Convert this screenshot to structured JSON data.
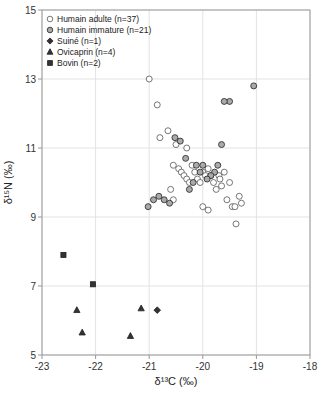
{
  "chart_data": {
    "type": "scatter",
    "xlabel": "δ¹³C (‰)",
    "ylabel": "δ¹⁵N (‰)",
    "xlim": [
      -23,
      -18
    ],
    "ylim": [
      5,
      15
    ],
    "xticks": [
      -23,
      -22,
      -21,
      -20,
      -19,
      -18
    ],
    "yticks": [
      5,
      7,
      9,
      11,
      13,
      15
    ],
    "grid": true,
    "legend": "upper left",
    "series": [
      {
        "name": "Humain adulte (n=37)",
        "color": "white",
        "marker": "circle",
        "x": [
          -21.0,
          -20.85,
          -20.65,
          -20.55,
          -20.45,
          -20.4,
          -20.35,
          -20.3,
          -20.25,
          -20.2,
          -20.15,
          -20.1,
          -20.05,
          -20.0,
          -19.95,
          -19.9,
          -19.85,
          -19.8,
          -19.75,
          -19.7,
          -19.68,
          -19.65,
          -19.6,
          -19.55,
          -19.5,
          -19.45,
          -19.4,
          -19.38,
          -19.32,
          -19.28,
          -20.8,
          -20.5,
          -20.3,
          -20.0,
          -19.9,
          -20.55,
          -20.6
        ],
        "values": [
          13.0,
          12.25,
          11.5,
          10.5,
          10.4,
          10.3,
          10.2,
          10.1,
          10.0,
          10.5,
          10.3,
          10.1,
          10.0,
          10.3,
          10.2,
          10.4,
          10.2,
          10.0,
          9.8,
          10.2,
          10.1,
          9.9,
          10.3,
          9.5,
          10.0,
          9.3,
          9.3,
          8.8,
          9.6,
          9.4,
          11.3,
          11.1,
          11.0,
          9.3,
          9.2,
          9.5,
          9.8
        ]
      },
      {
        "name": "Humain immature (n=21)",
        "color": "#aaaaaa",
        "marker": "circle",
        "x": [
          -19.05,
          -19.5,
          -19.6,
          -19.65,
          -19.72,
          -19.78,
          -19.85,
          -19.92,
          -20.0,
          -20.05,
          -20.12,
          -20.18,
          -20.25,
          -20.32,
          -20.42,
          -20.52,
          -20.62,
          -20.72,
          -20.82,
          -20.92,
          -21.02
        ],
        "values": [
          12.8,
          12.35,
          12.35,
          11.1,
          10.5,
          10.3,
          10.2,
          10.1,
          10.5,
          10.3,
          10.5,
          10.0,
          9.8,
          10.7,
          11.2,
          11.3,
          9.4,
          9.5,
          9.6,
          9.5,
          9.3
        ]
      },
      {
        "name": "Suiné (n=1)",
        "color": "#333333",
        "marker": "diamond",
        "x": [
          -20.85
        ],
        "values": [
          6.3
        ]
      },
      {
        "name": "Ovicaprin (n=4)",
        "color": "#333333",
        "marker": "triangle",
        "x": [
          -22.35,
          -22.25,
          -21.35,
          -21.15
        ],
        "values": [
          6.3,
          5.65,
          5.55,
          6.35
        ]
      },
      {
        "name": "Bovin (n=2)",
        "color": "#333333",
        "marker": "square",
        "x": [
          -22.6,
          -22.05
        ],
        "values": [
          7.9,
          7.05
        ]
      }
    ]
  }
}
